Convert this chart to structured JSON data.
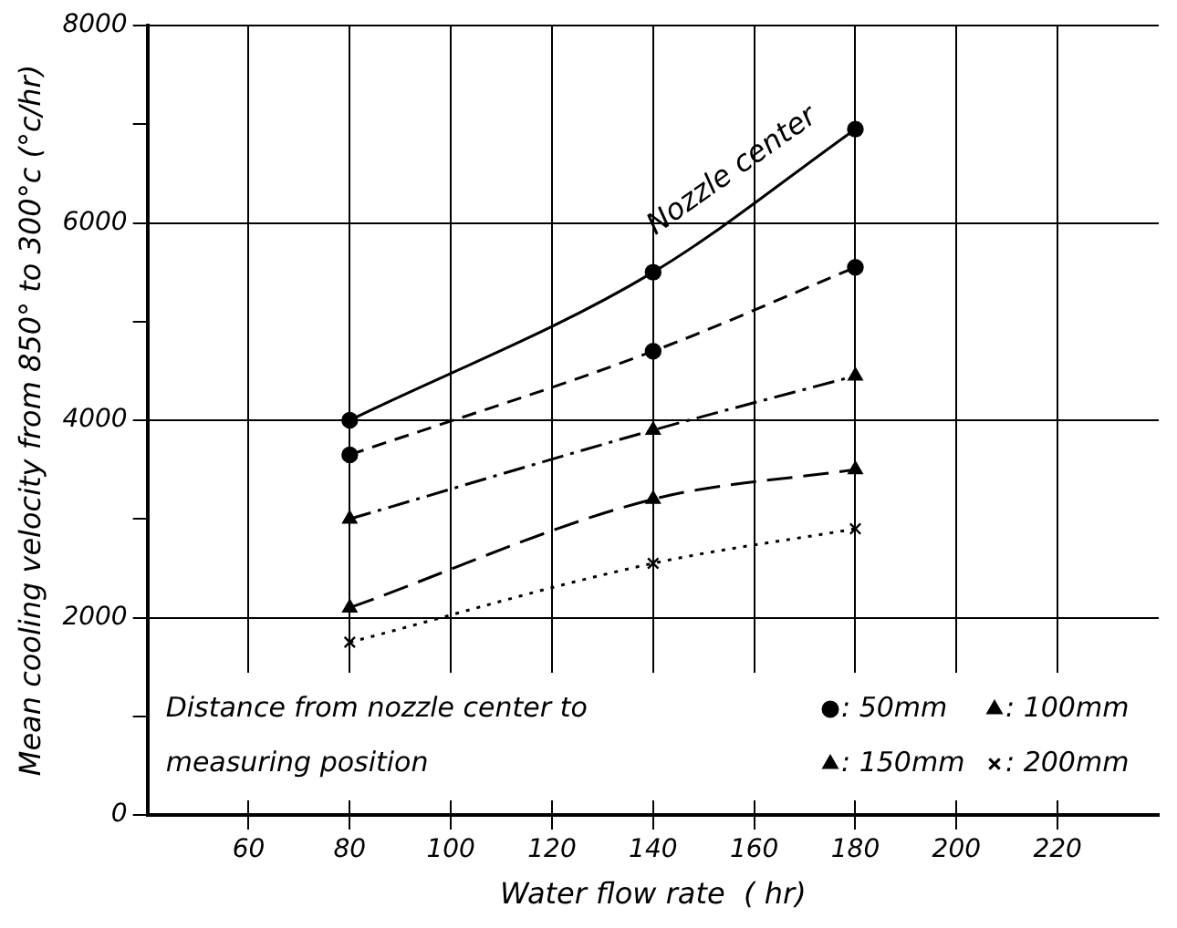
{
  "chart_data": {
    "type": "line",
    "xlabel": "Water flow rate  ( hr)",
    "ylabel": "Mean cooling velocity from 850° to 300°c (°c/hr)",
    "legend_title": "Distance from nozzle center to measuring position",
    "legend": "bottom right",
    "grid": true,
    "xlim": [
      40,
      240
    ],
    "xticks": [
      60,
      80,
      100,
      120,
      140,
      160,
      180,
      200,
      220
    ],
    "ylim": [
      0,
      8000
    ],
    "yticks": [
      0,
      {
        "value": 1000,
        "label": null
      },
      2000,
      {
        "value": 3000,
        "label": null
      },
      4000,
      {
        "value": 5000,
        "label": null
      },
      6000,
      {
        "value": 7000,
        "label": null
      },
      8000
    ],
    "x": [
      80,
      140,
      180
    ],
    "series": [
      {
        "name": "Nozzle center",
        "color": "#000000",
        "values": [
          4000,
          5500,
          6950
        ],
        "marker": "circle",
        "line_style": "solid"
      },
      {
        "name": ": 50mm",
        "color": "#000000",
        "values": [
          3650,
          4700,
          5550
        ],
        "marker": "circle",
        "line_style": "dashed"
      },
      {
        "name": ": 100mm",
        "color": "#000000",
        "values": [
          3000,
          3900,
          4450
        ],
        "marker": "triangle",
        "line_style": "dashed"
      },
      {
        "name": ": 150mm",
        "color": "#000000",
        "values": [
          2100,
          3200,
          3500
        ],
        "marker": "triangle",
        "line_style": "dashed"
      },
      {
        "name": ": 200mm",
        "color": "#000000",
        "values": [
          1750,
          2550,
          2900
        ],
        "marker": "cross",
        "line_style": "dotted"
      }
    ]
  }
}
